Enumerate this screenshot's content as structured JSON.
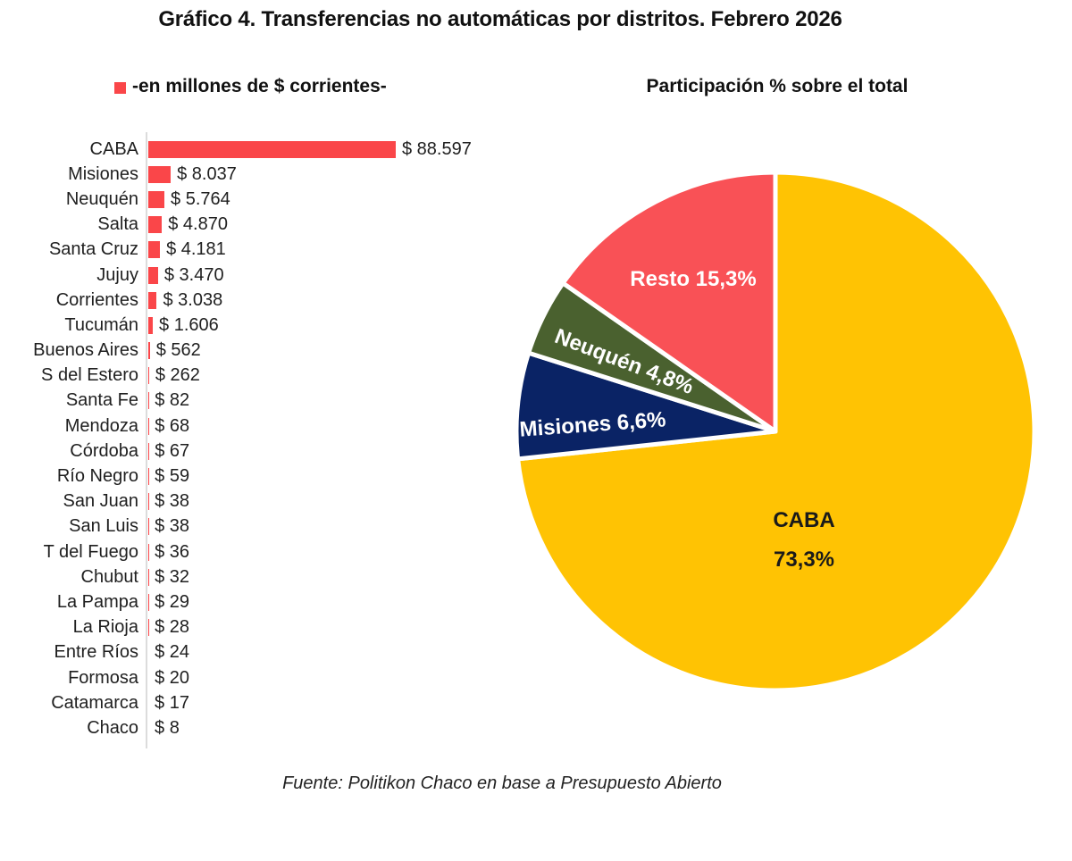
{
  "title": "Gráfico 4. Transferencias no automáticas por distritos. Febrero 2026",
  "footer": "Fuente: Politikon Chaco en base a Presupuesto Abierto",
  "bar_section": {
    "legend_label": "-en millones de $ corrientes-",
    "legend_color": "#fa4649"
  },
  "pie_section": {
    "title": "Participación % sobre el total"
  },
  "colors": {
    "bar_red": "#fa4649",
    "pie_yellow": "#ffc303",
    "pie_navy": "#0a2365",
    "pie_olive": "#4a612f",
    "pie_red": "#f95156",
    "axis_gray": "#dcdcdc"
  },
  "chart_data": [
    {
      "type": "bar",
      "orientation": "horizontal",
      "title": "-en millones de $ corrientes-",
      "bar_color": "#fa4649",
      "xlim": [
        0,
        88597
      ],
      "grid": false,
      "categories": [
        "CABA",
        "Misiones",
        "Neuquén",
        "Salta",
        "Santa Cruz",
        "Jujuy",
        "Corrientes",
        "Tucumán",
        "Buenos Aires",
        "S del Estero",
        "Santa Fe",
        "Mendoza",
        "Córdoba",
        "Río Negro",
        "San Juan",
        "San Luis",
        "T del Fuego",
        "Chubut",
        "La Pampa",
        "La Rioja",
        "Entre Ríos",
        "Formosa",
        "Catamarca",
        "Chaco"
      ],
      "values": [
        88597,
        8037,
        5764,
        4870,
        4181,
        3470,
        3038,
        1606,
        562,
        262,
        82,
        68,
        67,
        59,
        38,
        38,
        36,
        32,
        29,
        28,
        24,
        20,
        17,
        8
      ],
      "value_labels": [
        "$ 88.597",
        "$ 8.037",
        "$ 5.764",
        "$ 4.870",
        "$ 4.181",
        "$ 3.470",
        "$ 3.038",
        "$ 1.606",
        "$ 562",
        "$ 262",
        "$ 82",
        "$ 68",
        "$ 67",
        "$ 59",
        "$ 38",
        "$ 38",
        "$ 36",
        "$ 32",
        "$ 29",
        "$ 28",
        "$ 24",
        "$ 20",
        "$ 17",
        "$ 8"
      ]
    },
    {
      "type": "pie",
      "title": "Participación % sobre el total",
      "start_angle_deg": 0,
      "direction": "clockwise",
      "legend_position": "none",
      "slices": [
        {
          "name": "CABA",
          "pct": 73.3,
          "color": "#ffc303",
          "label_lines": [
            "CABA",
            "73,3%"
          ],
          "label_color": "#1a1a1a"
        },
        {
          "name": "Misiones",
          "pct": 6.6,
          "color": "#0a2365",
          "label_lines": [
            "Misiones 6,6%"
          ],
          "label_color": "#ffffff"
        },
        {
          "name": "Neuquén",
          "pct": 4.8,
          "color": "#4a612f",
          "label_lines": [
            "Neuquén 4,8%"
          ],
          "label_color": "#ffffff"
        },
        {
          "name": "Resto",
          "pct": 15.3,
          "color": "#f95156",
          "label_lines": [
            "Resto 15,3%"
          ],
          "label_color": "#ffffff"
        }
      ]
    }
  ]
}
